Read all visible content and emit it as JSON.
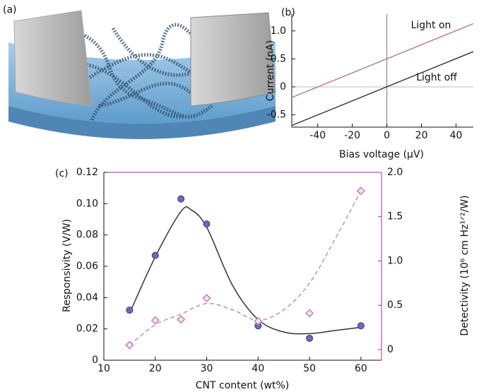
{
  "figure_a": {
    "label": "(a)"
  },
  "chart_data": [
    {
      "type": "line",
      "panel_label": "(b)",
      "x_label": "Bias voltage (µV)",
      "y_label": "Current (nA)",
      "x": [
        -55,
        50
      ],
      "series": [
        {
          "color": "#b07888",
          "values": [
            -0.19,
            1.13
          ]
        },
        {
          "color": "#333333",
          "values": [
            -0.69,
            0.63
          ]
        }
      ],
      "annotations": [
        "Light on",
        "Light off"
      ],
      "xlim": [
        -55,
        50
      ],
      "xticks": [
        -40,
        -20,
        0,
        20,
        40
      ],
      "ylim": [
        -0.72,
        1.3
      ],
      "yticks": [
        -0.5,
        0,
        0.5,
        {
          "value": 1.0,
          "label": "1.0"
        }
      ]
    },
    {
      "type": "scatter",
      "panel_label": "(c)",
      "x_label": "CNT content (wt%)",
      "y_label": "Responsivity (V/W)",
      "y2_label": "Detectivity (10⁶ cm Hz¹ᐟ²/W)",
      "axis2_color": "#a0309a",
      "x": [
        15,
        20,
        25,
        30,
        40,
        50,
        60
      ],
      "series": [
        {
          "color": "#6a6ab8",
          "marker": "circle",
          "values": [
            0.032,
            0.067,
            0.103,
            0.087,
            0.022,
            0.014,
            0.022
          ]
        },
        {
          "color": "#c77fb0",
          "marker": "diamond",
          "axis": "y2",
          "values": [
            0.05,
            0.33,
            0.34,
            0.58,
            0.32,
            0.41,
            1.79
          ]
        }
      ],
      "fits": [
        {
          "color": "#333333",
          "dash": false,
          "x": [
            15,
            20,
            25,
            27,
            30,
            35,
            40,
            45,
            50,
            55,
            60
          ],
          "values": [
            0.03,
            0.066,
            0.095,
            0.096,
            0.085,
            0.048,
            0.026,
            0.018,
            0.017,
            0.019,
            0.021
          ]
        },
        {
          "color": "#b09aac",
          "dash": true,
          "axis": "y2",
          "x": [
            15,
            20,
            25,
            30,
            35,
            40,
            45,
            50,
            55,
            60
          ],
          "values": [
            0.05,
            0.28,
            0.4,
            0.52,
            0.45,
            0.33,
            0.45,
            0.75,
            1.25,
            1.79
          ]
        }
      ],
      "xlim": [
        10,
        64
      ],
      "xticks": [
        10,
        20,
        30,
        40,
        50,
        60
      ],
      "ylim": [
        0,
        0.12
      ],
      "yticks": [
        0,
        0.02,
        0.04,
        0.06,
        0.08,
        {
          "value": 0.1,
          "label": "0.10"
        },
        0.12
      ],
      "y2lim": [
        -0.12,
        2.0
      ],
      "y2ticks": [
        0,
        0.5,
        {
          "value": 1.0,
          "label": "1.0"
        },
        1.5,
        {
          "value": 2.0,
          "label": "2.0"
        }
      ]
    }
  ]
}
